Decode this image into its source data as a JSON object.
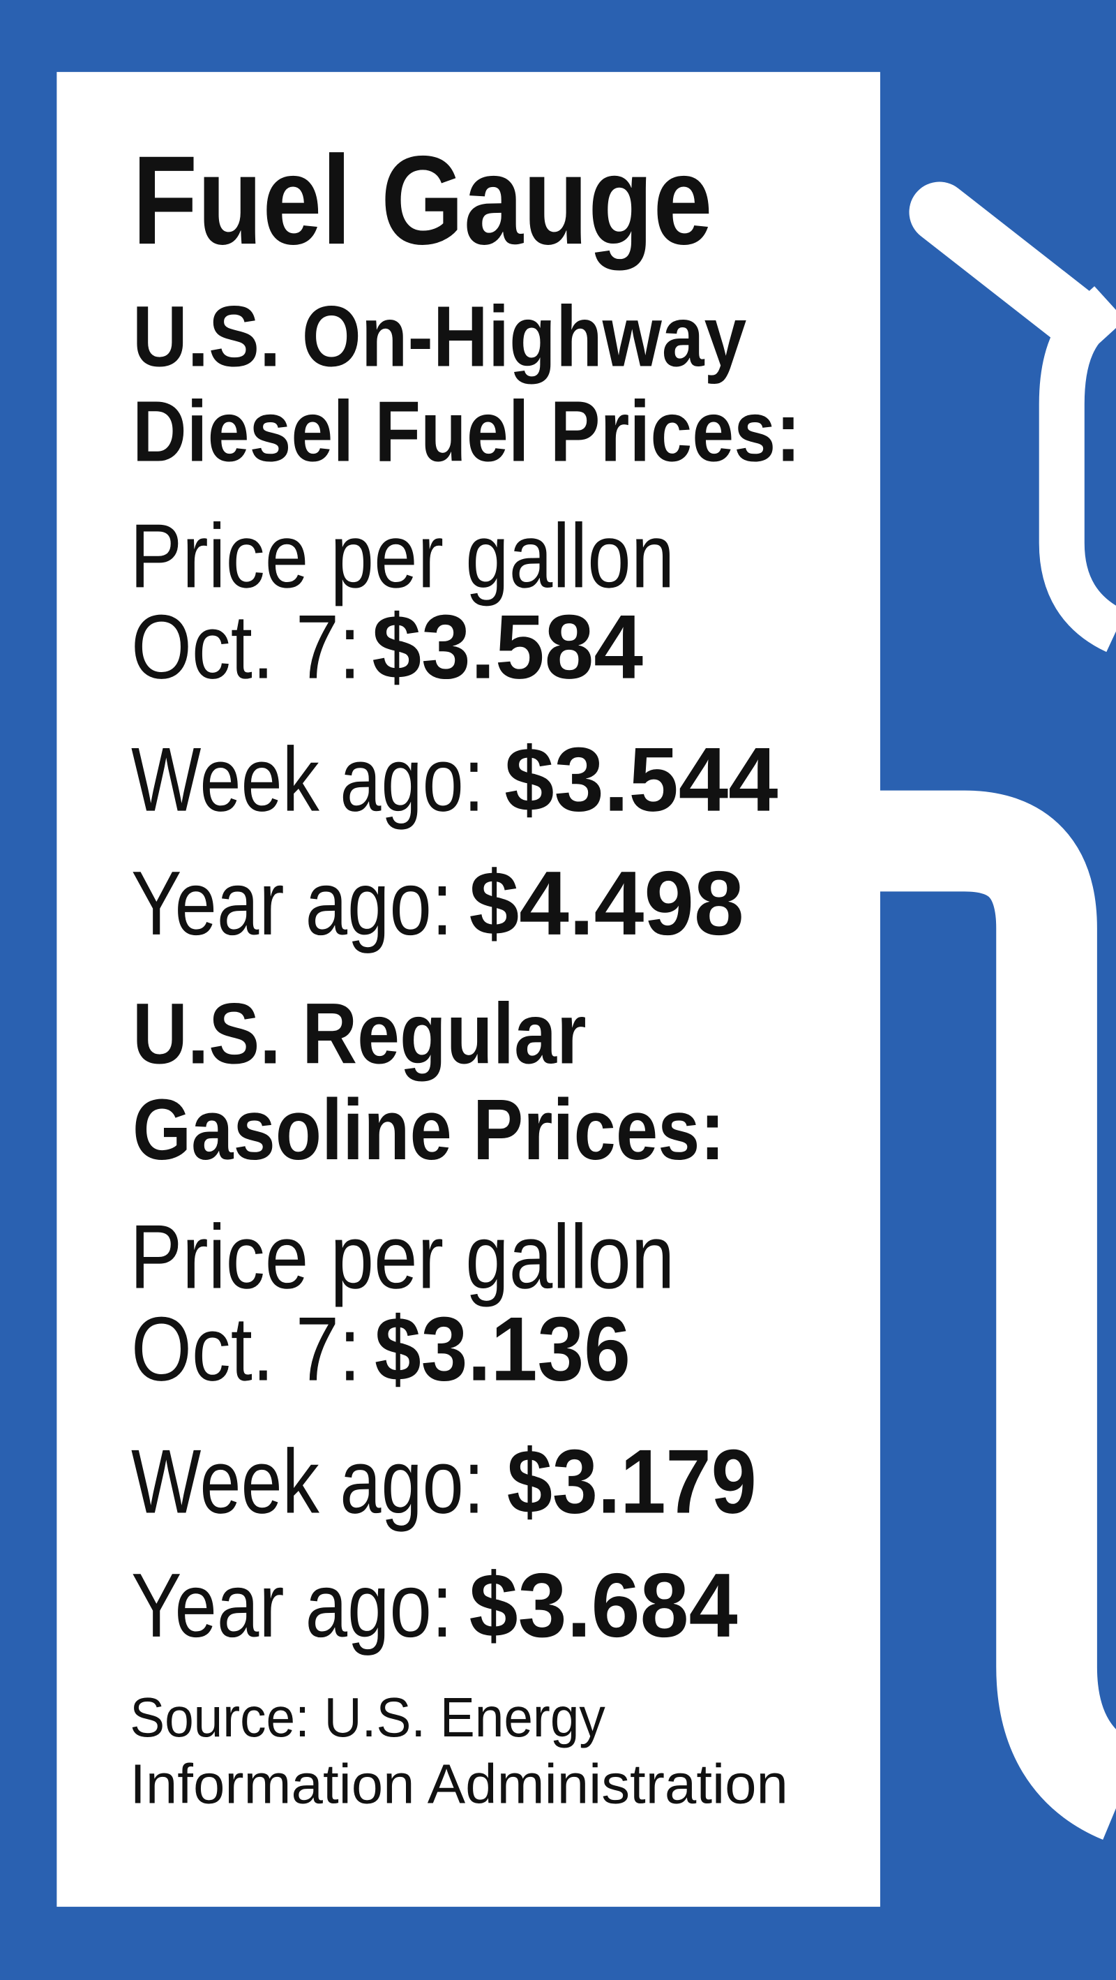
{
  "title": "Fuel Gauge",
  "sections": [
    {
      "heading": [
        "U.S. On-Highway",
        "Diesel Fuel Prices:"
      ],
      "caption": "Price per gallon",
      "rows": [
        {
          "label": "Oct. 7:",
          "value": "$3.584"
        },
        {
          "label": "Week ago:",
          "value": "$3.544"
        },
        {
          "label": "Year ago:",
          "value": "$4.498"
        }
      ]
    },
    {
      "heading": [
        "U.S. Regular",
        "Gasoline Prices:"
      ],
      "caption": "Price per gallon",
      "rows": [
        {
          "label": "Oct. 7:",
          "value": "$3.136"
        },
        {
          "label": "Week ago:",
          "value": "$3.179"
        },
        {
          "label": "Year ago:",
          "value": "$3.684"
        }
      ]
    }
  ],
  "source": [
    "Source: U.S. Energy",
    "Information Administration"
  ]
}
